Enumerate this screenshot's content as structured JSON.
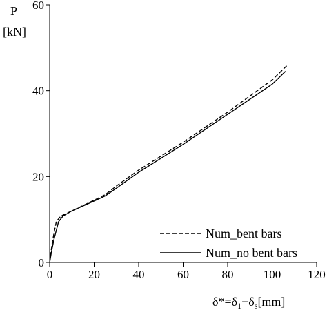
{
  "chart_data": {
    "type": "line",
    "ylabel": [
      "P",
      "[kN]"
    ],
    "xlabel": [
      "δ*=δ",
      "1",
      "−δ",
      "s",
      "[mm]"
    ],
    "xlim": [
      0,
      120
    ],
    "xticks": [
      0,
      20,
      40,
      60,
      80,
      100,
      120
    ],
    "ylim": [
      0,
      60
    ],
    "yticks": [
      0,
      20,
      40,
      60
    ],
    "legend": "lower right",
    "series": [
      {
        "name": "Num_bent bars",
        "color": "#000000",
        "dash": "dashed",
        "x": [
          0,
          1,
          2,
          3,
          5,
          10,
          20,
          25,
          30,
          40,
          60,
          80,
          100,
          107
        ],
        "values": [
          0,
          4,
          7,
          9.5,
          10.8,
          12,
          14.5,
          15.8,
          17.8,
          21.5,
          28,
          35,
          42.5,
          46
        ]
      },
      {
        "name": "Num_no bent bars",
        "color": "#000000",
        "dash": "solid",
        "x": [
          0,
          1,
          2,
          4,
          6,
          10,
          20,
          25,
          30,
          40,
          60,
          80,
          100,
          106
        ],
        "values": [
          0,
          3,
          5.5,
          9.5,
          10.8,
          12,
          14.3,
          15.5,
          17.3,
          21,
          27.5,
          34.5,
          41.5,
          44.5
        ]
      }
    ]
  }
}
